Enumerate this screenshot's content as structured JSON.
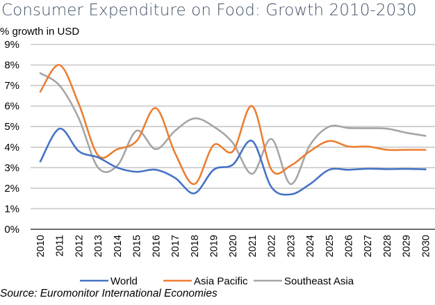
{
  "chart_data": {
    "type": "line",
    "title": "Consumer Expenditure on Food: Growth 2010-2030",
    "ylabel": "% growth in USD",
    "xlabel": "",
    "source": "Source: Euromonitor International Economies",
    "x": [
      "2010",
      "2011",
      "2012",
      "2013",
      "2014",
      "2015",
      "2016",
      "2017",
      "2018",
      "2019",
      "2020",
      "2021",
      "2022",
      "2023",
      "2024",
      "2025",
      "2026",
      "2027",
      "2028",
      "2029",
      "2030"
    ],
    "ylim": [
      0,
      9
    ],
    "yticks": [
      "0%",
      "1%",
      "2%",
      "3%",
      "4%",
      "5%",
      "6%",
      "7%",
      "8%",
      "9%"
    ],
    "grid": true,
    "smoothed": true,
    "legend_position": "bottom",
    "series": [
      {
        "name": "World",
        "color": "#4472C4",
        "values": [
          3.3,
          4.9,
          3.8,
          3.5,
          3.0,
          2.8,
          2.9,
          2.5,
          1.75,
          2.9,
          3.15,
          4.3,
          2.05,
          1.7,
          2.2,
          2.9,
          2.9,
          2.95,
          2.93,
          2.94,
          2.92
        ]
      },
      {
        "name": "Asia Pacific",
        "color": "#ED7D31",
        "values": [
          6.7,
          8.0,
          6.1,
          3.6,
          3.9,
          4.3,
          5.9,
          3.7,
          2.2,
          4.1,
          3.8,
          6.0,
          2.9,
          3.1,
          3.8,
          4.3,
          4.03,
          4.03,
          3.87,
          3.87,
          3.87
        ]
      },
      {
        "name": "Southeast Asia",
        "color": "#A5A5A5",
        "values": [
          7.6,
          7.0,
          5.4,
          3.0,
          3.1,
          4.8,
          3.9,
          4.8,
          5.4,
          5.0,
          4.2,
          2.7,
          4.4,
          2.2,
          4.1,
          5.0,
          4.93,
          4.92,
          4.9,
          4.7,
          4.55
        ]
      }
    ]
  }
}
